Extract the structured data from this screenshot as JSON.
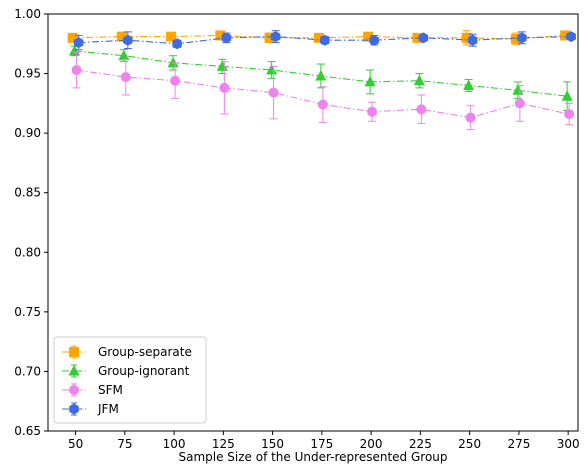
{
  "chart_data": {
    "type": "line",
    "title": "",
    "xlabel": "Sample Size of the Under-represented Group",
    "ylabel": "",
    "x": [
      50,
      75,
      100,
      125,
      150,
      175,
      200,
      225,
      250,
      275,
      300
    ],
    "xlim": [
      36,
      305
    ],
    "ylim": [
      0.65,
      1.0
    ],
    "xticks": [
      50,
      75,
      100,
      125,
      150,
      175,
      200,
      225,
      250,
      275,
      300
    ],
    "yticks": [
      0.65,
      0.7,
      0.75,
      0.8,
      0.85,
      0.9,
      0.95,
      1.0
    ],
    "ytick_labels": [
      "0.65",
      "0.70",
      "0.75",
      "0.80",
      "0.85",
      "0.90",
      "0.95",
      "1.00"
    ],
    "grid": false,
    "legend_position": "lower-left",
    "series": [
      {
        "name": "Group-separate",
        "color": "#ffa500",
        "marker": "square",
        "offset": -3,
        "values": [
          0.98,
          0.981,
          0.981,
          0.982,
          0.98,
          0.98,
          0.981,
          0.98,
          0.98,
          0.979,
          0.982
        ],
        "errors": [
          0.002,
          0.003,
          0.003,
          0.002,
          0.004,
          0.002,
          0.002,
          0.003,
          0.006,
          0.005,
          0.002
        ]
      },
      {
        "name": "Group-ignorant",
        "color": "#32cd32",
        "marker": "triangle",
        "offset": -1,
        "values": [
          0.969,
          0.965,
          0.959,
          0.956,
          0.953,
          0.948,
          0.943,
          0.944,
          0.94,
          0.936,
          0.931
        ],
        "errors": [
          0.004,
          0.005,
          0.006,
          0.006,
          0.007,
          0.01,
          0.01,
          0.006,
          0.005,
          0.007,
          0.012
        ]
      },
      {
        "name": "SFM",
        "color": "#ee82ee",
        "marker": "circle",
        "offset": 1,
        "values": [
          0.953,
          0.947,
          0.944,
          0.938,
          0.934,
          0.924,
          0.918,
          0.92,
          0.913,
          0.925,
          0.916
        ],
        "errors": [
          0.015,
          0.015,
          0.015,
          0.022,
          0.022,
          0.015,
          0.008,
          0.012,
          0.01,
          0.015,
          0.009
        ]
      },
      {
        "name": "JFM",
        "color": "#4169e1",
        "marker": "hexagon",
        "offset": 3,
        "values": [
          0.976,
          0.978,
          0.975,
          0.98,
          0.981,
          0.978,
          0.978,
          0.98,
          0.978,
          0.98,
          0.981
        ],
        "errors": [
          0.006,
          0.007,
          0.003,
          0.004,
          0.005,
          0.003,
          0.004,
          0.002,
          0.005,
          0.005,
          0.002
        ]
      }
    ]
  }
}
